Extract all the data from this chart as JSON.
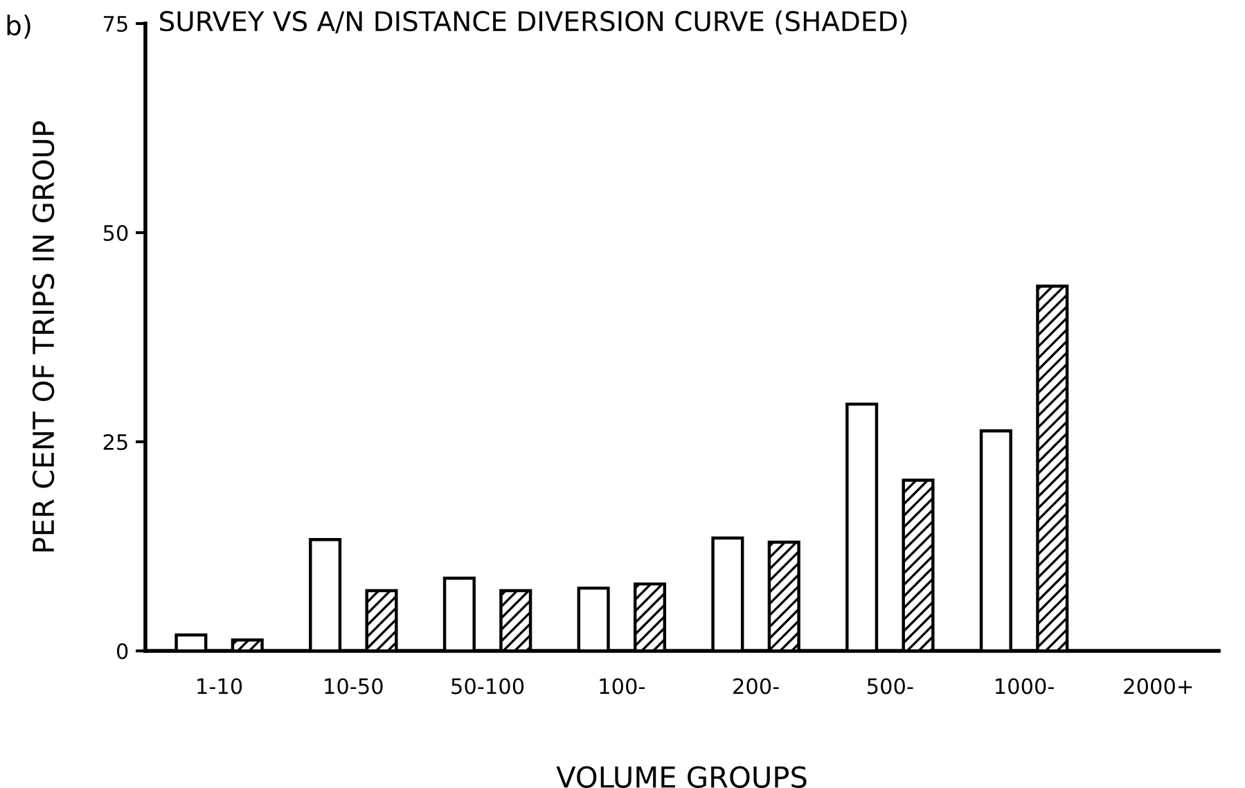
{
  "chart_data": {
    "type": "bar",
    "title": "SURVEY VS A/N DISTANCE DIVERSION CURVE (SHADED)",
    "xlabel": "VOLUME GROUPS",
    "ylabel": "PER CENT OF TRIPS IN GROUP",
    "annotations": [
      "b)"
    ],
    "categories": [
      "1-10",
      "10-50",
      "50-100",
      "100-",
      "200-",
      "500-",
      "1000-",
      "2000+"
    ],
    "series": [
      {
        "color": "#ffffff",
        "values": [
          1.9,
          13.3,
          8.7,
          7.5,
          13.5,
          29.5,
          26.3,
          null
        ]
      },
      {
        "color": "#000000",
        "values": [
          1.3,
          7.2,
          7.2,
          8.0,
          13.0,
          20.4,
          43.6,
          null
        ]
      }
    ],
    "ylim": [
      0,
      75
    ],
    "yticks": [
      0,
      25,
      50,
      75
    ],
    "grid": false,
    "legend": false
  }
}
